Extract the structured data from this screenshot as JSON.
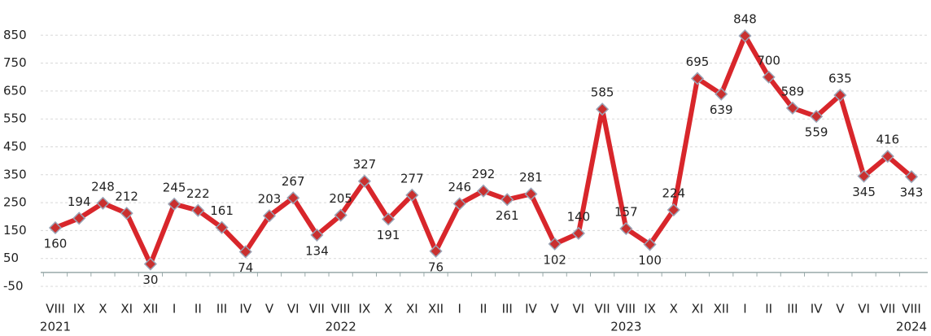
{
  "chart_data": {
    "type": "line",
    "categories": [
      "VIII",
      "IX",
      "X",
      "XI",
      "XII",
      "I",
      "II",
      "III",
      "IV",
      "V",
      "VI",
      "VII",
      "VIII",
      "IX",
      "X",
      "XI",
      "XII",
      "I",
      "II",
      "III",
      "IV",
      "V",
      "VI",
      "VII",
      "VIII",
      "IX",
      "X",
      "XI",
      "XII",
      "I",
      "II",
      "III",
      "IV",
      "V",
      "VI",
      "VII",
      "VIII"
    ],
    "year_labels": [
      {
        "label": "2021",
        "category": 0
      },
      {
        "label": "2022",
        "category": 12
      },
      {
        "label": "2023",
        "category": 24
      },
      {
        "label": "2024",
        "category": 36
      }
    ],
    "series": [
      {
        "color": "#d8262b",
        "values": [
          160,
          194,
          248,
          212,
          30,
          245,
          222,
          161,
          74,
          203,
          267,
          134,
          205,
          327,
          191,
          277,
          76,
          246,
          292,
          261,
          281,
          102,
          140,
          585,
          157,
          100,
          224,
          695,
          639,
          848,
          700,
          589,
          559,
          635,
          345,
          416,
          343
        ]
      }
    ],
    "ylim": [
      -50,
      950
    ],
    "yticks": [
      -50,
      50,
      150,
      250,
      350,
      450,
      550,
      650,
      750,
      850
    ],
    "grid": true
  }
}
